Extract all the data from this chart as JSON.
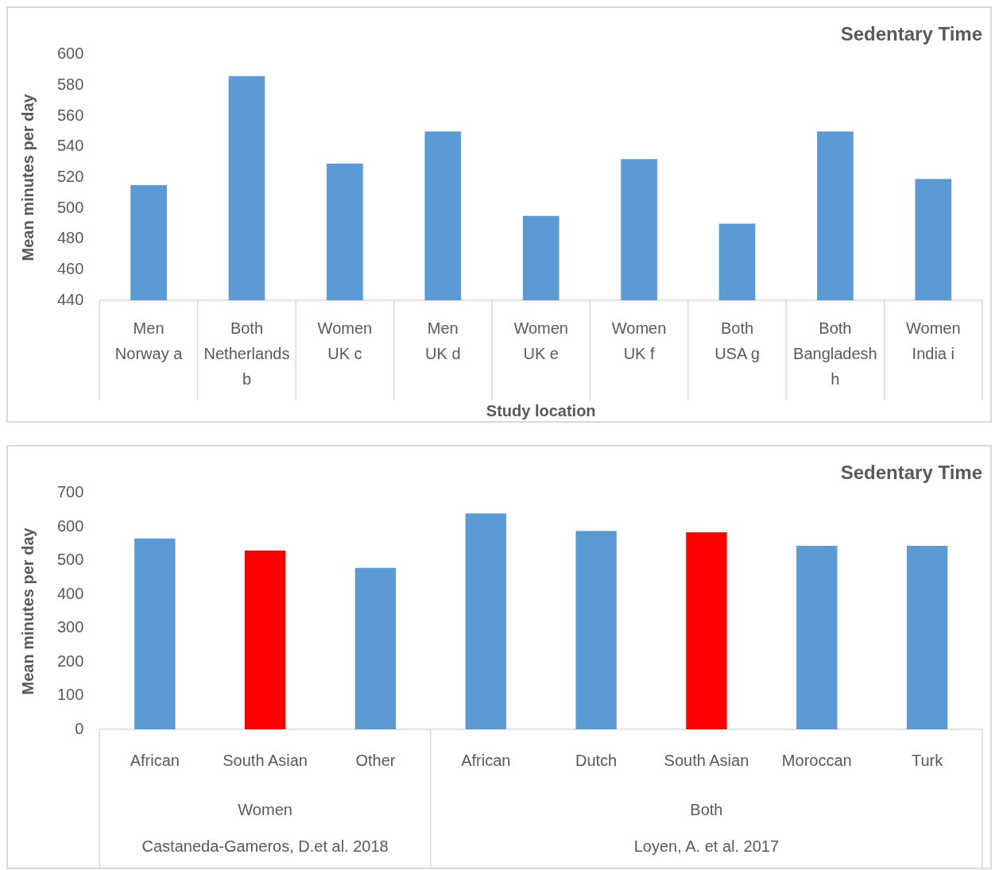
{
  "chart_data": [
    {
      "type": "bar",
      "title": "Sedentary Time",
      "xlabel": "Study location",
      "ylabel": "Mean minutes per day",
      "categories": [
        "Men\nNorway a",
        "Both\nNetherlands\nb",
        "Women\nUK c",
        "Men\nUK d",
        "Women\nUK e",
        "Women\nUK f",
        "Both\nUSA g",
        "Both\nBangladesh\nh",
        "Women\nIndia i"
      ],
      "values": [
        515,
        586,
        529,
        550,
        495,
        532,
        490,
        550,
        519
      ],
      "color": "#5b9bd5",
      "ylim": [
        440,
        600
      ],
      "yticks": [
        440,
        460,
        480,
        500,
        520,
        540,
        560,
        580,
        600
      ],
      "grid": false,
      "legend": false
    },
    {
      "type": "bar",
      "title": "Sedentary Time",
      "ylabel": "Mean minutes per day",
      "categories": [
        "African",
        "South Asian",
        "Other",
        "African",
        "Dutch",
        "South Asian",
        "Moroccan",
        "Turk"
      ],
      "values": [
        566,
        530,
        479,
        640,
        588,
        584,
        544,
        544
      ],
      "colors": [
        "#5b9bd5",
        "#ff0000",
        "#5b9bd5",
        "#5b9bd5",
        "#5b9bd5",
        "#ff0000",
        "#5b9bd5",
        "#5b9bd5"
      ],
      "ylim": [
        0,
        700
      ],
      "yticks": [
        0,
        100,
        200,
        300,
        400,
        500,
        600,
        700
      ],
      "grid": false,
      "legend": false,
      "annotations": [
        "Women",
        "Both",
        "Castaneda-Gameros, D.et al. 2018",
        "Loyen, A. et al. 2017"
      ]
    }
  ]
}
